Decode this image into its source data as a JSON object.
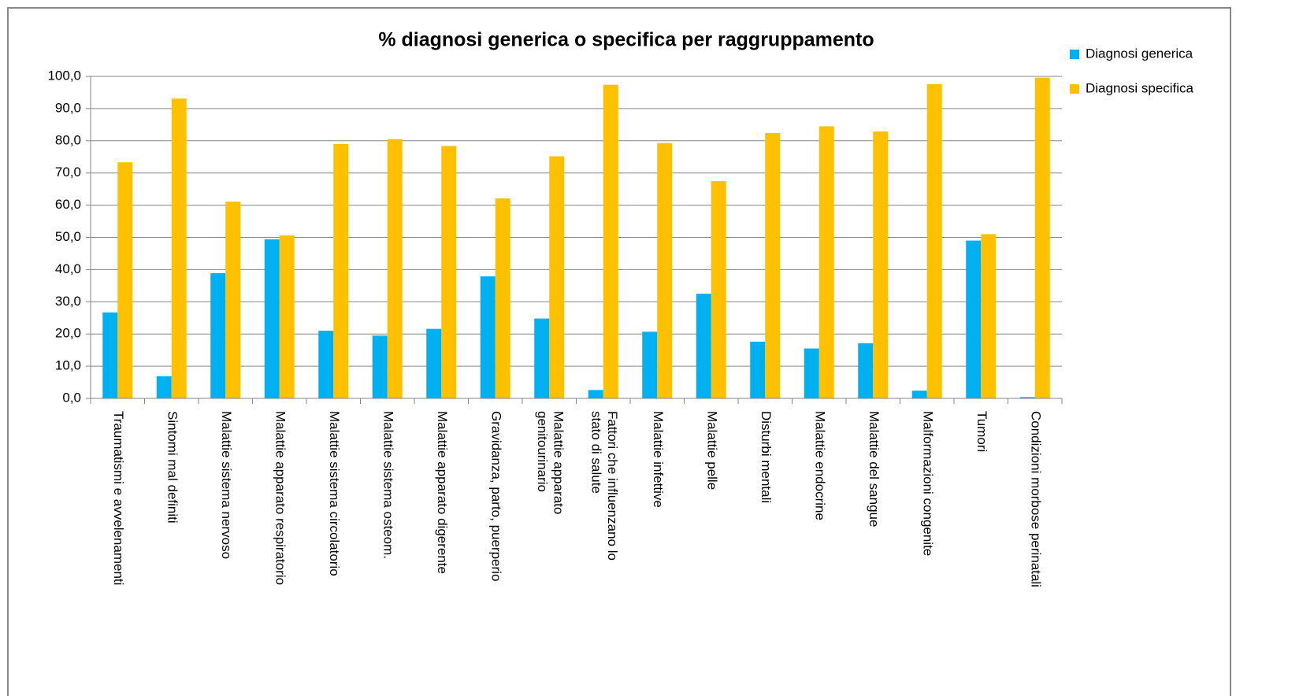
{
  "chart_data": {
    "type": "bar",
    "title": "% diagnosi generica o specifica per raggruppamento",
    "categories": [
      "Traumatismi e avvelenamenti",
      "Sintomi mal definiti",
      "Malattie sistema nervoso",
      "Malattie apparato respiratorio",
      "Malattie sistema circolatorio",
      "Malattie sistema osteom.",
      "Malattie apparato digerente",
      "Gravidanza, parto, puerperio",
      "Malattie apparato\ngenitourinario",
      "Fattori che influenzano lo\nstato di salute",
      "Malattie infettive",
      "Malattie pelle",
      "Disturbi mentali",
      "Malattie endocrine",
      "Malattie del sangue",
      "Malformazioni congenite",
      "Tumori",
      "Condizioni morbose perinatali"
    ],
    "series": [
      {
        "name": "Diagnosi generica",
        "color": "#00b0f0",
        "values": [
          26.7,
          6.9,
          38.9,
          49.4,
          21.0,
          19.5,
          21.6,
          37.9,
          24.8,
          2.6,
          20.7,
          32.5,
          17.6,
          15.5,
          17.1,
          2.4,
          49.0,
          0.4
        ]
      },
      {
        "name": "Diagnosi specifica",
        "color": "#ffc000",
        "values": [
          73.3,
          93.1,
          61.1,
          50.6,
          79.0,
          80.5,
          78.4,
          62.1,
          75.2,
          97.4,
          79.3,
          67.5,
          82.4,
          84.5,
          82.9,
          97.6,
          51.0,
          99.6
        ]
      }
    ],
    "ylim": [
      0,
      100
    ],
    "yticks": [
      {
        "value": 0,
        "label": "0,0"
      },
      {
        "value": 10,
        "label": "10,0"
      },
      {
        "value": 20,
        "label": "20,0"
      },
      {
        "value": 30,
        "label": "30,0"
      },
      {
        "value": 40,
        "label": "40,0"
      },
      {
        "value": 50,
        "label": "50,0"
      },
      {
        "value": 60,
        "label": "60,0"
      },
      {
        "value": 70,
        "label": "70,0"
      },
      {
        "value": 80,
        "label": "80,0"
      },
      {
        "value": 90,
        "label": "90,0"
      },
      {
        "value": 100,
        "label": "100,0"
      }
    ],
    "grid": true,
    "legend": "right"
  }
}
